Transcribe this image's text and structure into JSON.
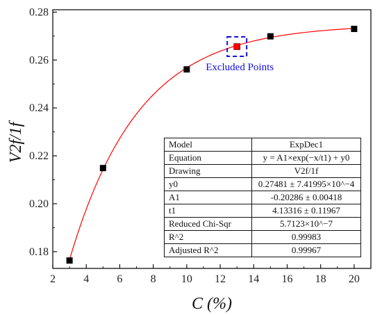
{
  "chart_data": {
    "type": "scatter",
    "xlabel": "C (%)",
    "ylabel": "V2f/1f",
    "xlim": [
      2,
      21
    ],
    "ylim": [
      0.173,
      0.281
    ],
    "xticks": [
      2,
      4,
      6,
      8,
      10,
      12,
      14,
      16,
      18,
      20
    ],
    "yticks": [
      0.18,
      0.2,
      0.22,
      0.24,
      0.26,
      0.28
    ],
    "ytick_labels": [
      "0.18",
      "0.20",
      "0.22",
      "0.24",
      "0.26",
      "0.28"
    ],
    "grid": false,
    "series": [
      {
        "points": [
          {
            "x": 3,
            "y": 0.1763
          },
          {
            "x": 5,
            "y": 0.2149
          },
          {
            "x": 10,
            "y": 0.2561
          },
          {
            "x": 15,
            "y": 0.2699
          },
          {
            "x": 20,
            "y": 0.273
          }
        ],
        "color": "#000000"
      },
      {
        "points": [
          {
            "x": 13,
            "y": 0.2656
          }
        ],
        "color": "#ff0000"
      }
    ],
    "fit": {
      "model": "ExpDec1",
      "y0": 0.27481,
      "A1": -0.20286,
      "t1": 4.13316,
      "x_range": [
        3,
        20
      ],
      "color": "#ff0000"
    },
    "annotations": [
      {
        "text": "Excluded Points",
        "x": 13,
        "y": 0.2656,
        "color": "#1010e0"
      }
    ]
  },
  "fit_table": [
    {
      "key": "Model",
      "value": "ExpDec1"
    },
    {
      "key": "Equation",
      "value": "y = A1×exp(−x/t1) + y0"
    },
    {
      "key": "Drawing",
      "value": "V2f/1f"
    },
    {
      "key": "y0",
      "value": "0.27481 ± 7.41995×10^−4"
    },
    {
      "key": "A1",
      "value": "-0.20286 ± 0.00418"
    },
    {
      "key": "t1",
      "value": "4.13316 ± 0.11967"
    },
    {
      "key": "Reduced Chi-Sqr",
      "value": "5.7123×10^−7"
    },
    {
      "key": "R^2",
      "value": "0.99983"
    },
    {
      "key": "Adjusted R^2",
      "value": "0.99967"
    }
  ]
}
